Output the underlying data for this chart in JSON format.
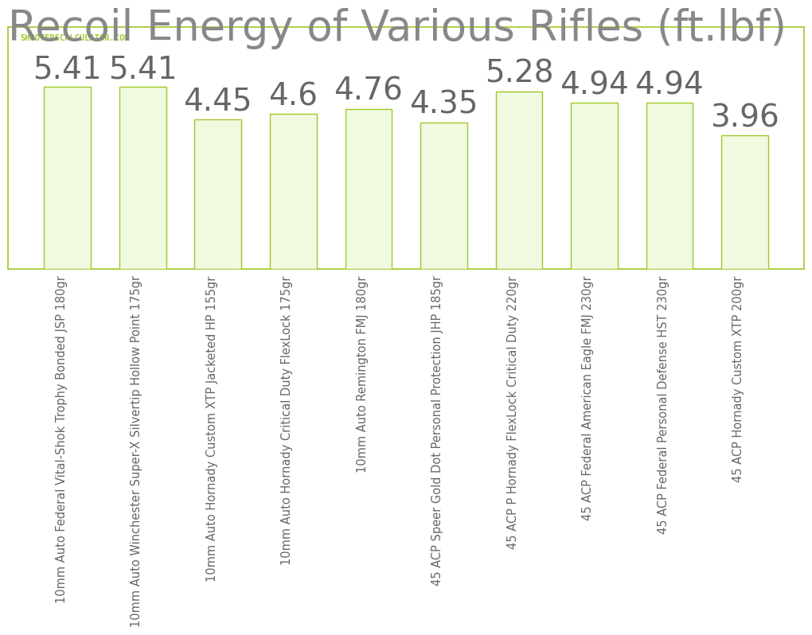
{
  "title": "Recoil Energy of Various Rifles (ft.lbf)",
  "categories": [
    "10mm Auto Federal Vital-Shok Trophy Bonded JSP 180gr",
    "10mm Auto Winchester Super-X Silvertip Hollow Point 175gr",
    "10mm Auto Hornady Custom XTP Jacketed HP 155gr",
    "10mm Auto Hornady Critical Duty FlexLock 175gr",
    "10mm Auto Remington FMJ 180gr",
    "45 ACP Speer Gold Dot Personal Protection JHP 185gr",
    "45 ACP P Hornady FlexLock Critical Duty 220gr",
    "45 ACP Federal American Eagle FMJ 230gr",
    "45 ACP Federal Personal Defense HST 230gr",
    "45 ACP Hornady Custom XTP 200gr"
  ],
  "values": [
    5.41,
    5.41,
    4.45,
    4.6,
    4.76,
    4.35,
    5.28,
    4.94,
    4.94,
    3.96
  ],
  "bar_color": "#f0fae0",
  "bar_edge_color": "#9dc928",
  "label_color": "#666666",
  "title_color": "#888888",
  "watermark_text": "SHOOTERSCALCULATOR.COM",
  "watermark_color": "#9dc928",
  "background_color": "#ffffff",
  "plot_bg_color": "#ffffff",
  "grid_color": "#d8d8d8",
  "border_color": "#9dc928",
  "title_fontsize": 38,
  "value_fontsize": 28,
  "tick_fontsize": 10.5,
  "ylim": [
    0,
    7.2
  ],
  "bar_width": 0.62
}
